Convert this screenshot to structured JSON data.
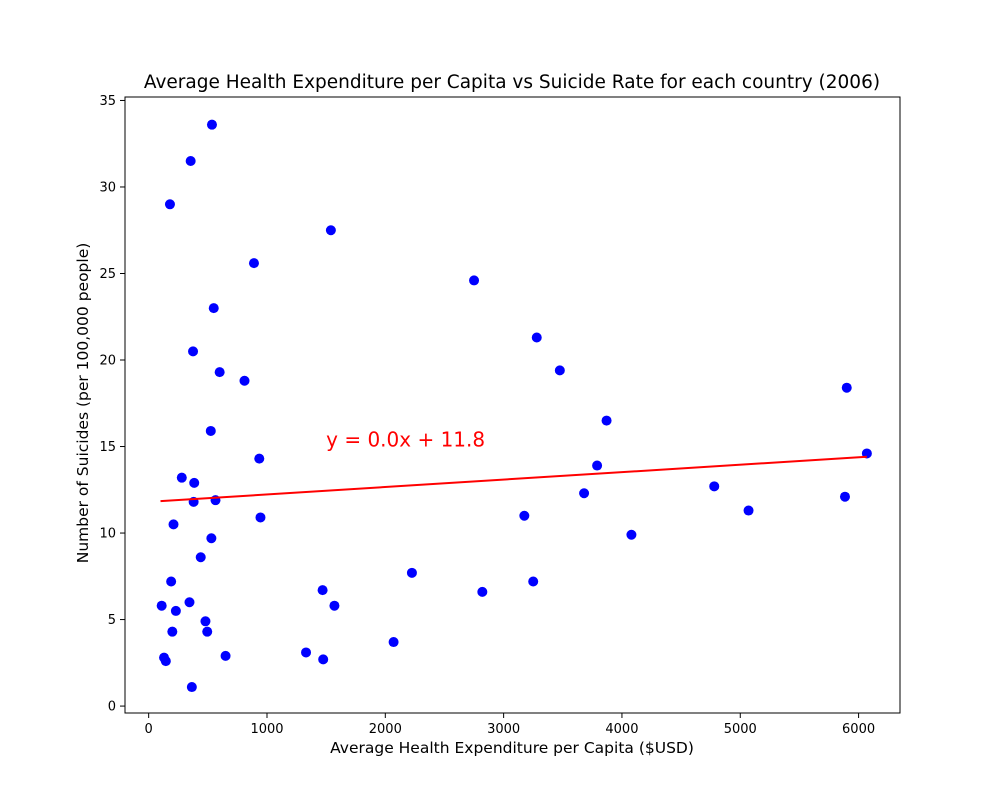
{
  "chart_data": {
    "type": "scatter",
    "title": "Average Health Expenditure per Capita vs Suicide Rate for each country (2006)",
    "xlabel": "Average Health Expenditure per Capita ($USD)",
    "ylabel": "Number of Suicides (per 100,000 people)",
    "xlim": [
      -200,
      6350
    ],
    "ylim": [
      -0.4,
      35.2
    ],
    "xticks": [
      0,
      1000,
      2000,
      3000,
      4000,
      5000,
      6000
    ],
    "yticks": [
      0,
      5,
      10,
      15,
      20,
      25,
      30,
      35
    ],
    "grid": false,
    "point_color": "#0000ff",
    "line_color": "#ff0000",
    "points": [
      [
        110,
        5.8
      ],
      [
        130,
        2.8
      ],
      [
        145,
        2.6
      ],
      [
        180,
        29.0
      ],
      [
        190,
        7.2
      ],
      [
        200,
        4.3
      ],
      [
        210,
        10.5
      ],
      [
        230,
        5.5
      ],
      [
        280,
        13.2
      ],
      [
        345,
        6.0
      ],
      [
        355,
        31.5
      ],
      [
        365,
        1.1
      ],
      [
        375,
        20.5
      ],
      [
        380,
        11.8
      ],
      [
        385,
        12.9
      ],
      [
        440,
        8.6
      ],
      [
        480,
        4.9
      ],
      [
        495,
        4.3
      ],
      [
        525,
        15.9
      ],
      [
        530,
        9.7
      ],
      [
        535,
        33.6
      ],
      [
        550,
        23.0
      ],
      [
        565,
        11.9
      ],
      [
        600,
        19.3
      ],
      [
        650,
        2.9
      ],
      [
        810,
        18.8
      ],
      [
        890,
        25.6
      ],
      [
        935,
        14.3
      ],
      [
        945,
        10.9
      ],
      [
        1330,
        3.1
      ],
      [
        1470,
        6.7
      ],
      [
        1475,
        2.7
      ],
      [
        1540,
        27.5
      ],
      [
        1570,
        5.8
      ],
      [
        2070,
        3.7
      ],
      [
        2225,
        7.7
      ],
      [
        2750,
        24.6
      ],
      [
        2820,
        6.6
      ],
      [
        3175,
        11.0
      ],
      [
        3250,
        7.2
      ],
      [
        3280,
        21.3
      ],
      [
        3475,
        19.4
      ],
      [
        3680,
        12.3
      ],
      [
        3790,
        13.9
      ],
      [
        3870,
        16.5
      ],
      [
        4080,
        9.9
      ],
      [
        4780,
        12.7
      ],
      [
        5070,
        11.3
      ],
      [
        5885,
        12.1
      ],
      [
        5900,
        18.4
      ],
      [
        6070,
        14.6
      ]
    ],
    "regression": {
      "slope": 0.00043,
      "intercept": 11.8,
      "x_range": [
        100,
        6070
      ]
    },
    "annotation": {
      "text": "y = 0.0x + 11.8",
      "x": 1500,
      "y": 15.0
    }
  }
}
